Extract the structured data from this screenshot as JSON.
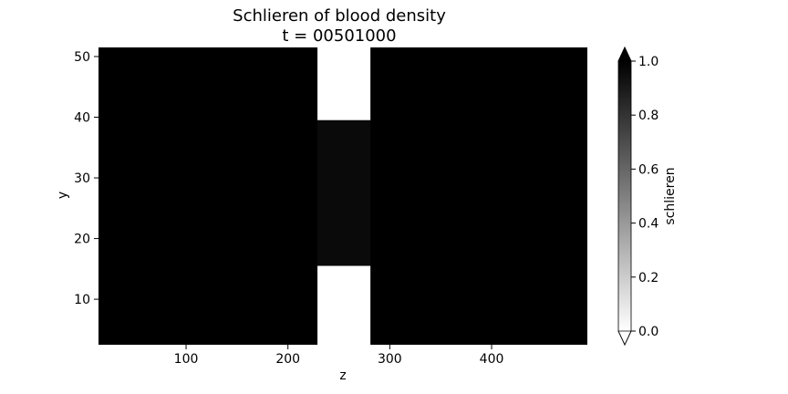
{
  "chart_data": {
    "type": "heatmap",
    "title_line1": "Schlieren of blood density",
    "title_line2": "t = 00501000",
    "xlabel": "z",
    "ylabel": "y",
    "xlim": [
      14,
      494
    ],
    "ylim": [
      2.5,
      51.5
    ],
    "xticks": [
      100,
      200,
      300,
      400
    ],
    "yticks": [
      10,
      20,
      30,
      40,
      50
    ],
    "colormap": "Greys",
    "grid": false,
    "background_value": 1.0,
    "regions": [
      {
        "z": [
          229,
          281
        ],
        "y": [
          39.5,
          51.5
        ],
        "value": 0.0
      },
      {
        "z": [
          229,
          281
        ],
        "y": [
          2.5,
          15.5
        ],
        "value": 0.0
      },
      {
        "z": [
          229,
          281
        ],
        "y": [
          15.5,
          39.5
        ],
        "value": 0.96
      }
    ],
    "colorbar": {
      "label": "schlieren",
      "range": [
        0.0,
        1.0
      ],
      "ticks": [
        "0.0",
        "0.2",
        "0.4",
        "0.6",
        "0.8",
        "1.0"
      ],
      "extend": "both"
    }
  }
}
